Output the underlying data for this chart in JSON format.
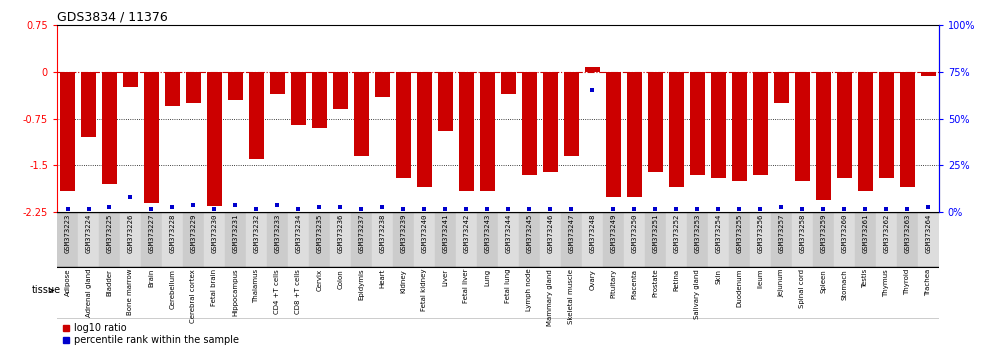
{
  "title": "GDS3834 / 11376",
  "samples": [
    "GSM373223",
    "GSM373224",
    "GSM373225",
    "GSM373226",
    "GSM373227",
    "GSM373228",
    "GSM373229",
    "GSM373230",
    "GSM373231",
    "GSM373232",
    "GSM373233",
    "GSM373234",
    "GSM373235",
    "GSM373236",
    "GSM373237",
    "GSM373238",
    "GSM373239",
    "GSM373240",
    "GSM373241",
    "GSM373242",
    "GSM373243",
    "GSM373244",
    "GSM373245",
    "GSM373246",
    "GSM373247",
    "GSM373248",
    "GSM373249",
    "GSM373250",
    "GSM373251",
    "GSM373252",
    "GSM373253",
    "GSM373254",
    "GSM373255",
    "GSM373256",
    "GSM373257",
    "GSM373258",
    "GSM373259",
    "GSM373260",
    "GSM373261",
    "GSM373262",
    "GSM373263",
    "GSM373264"
  ],
  "tissues": [
    "Adipose",
    "Adrenal gland",
    "Bladder",
    "Bone marrow",
    "Brain",
    "Cerebellum",
    "Cerebral cortex",
    "Fetal brain",
    "Hippocampus",
    "Thalamus",
    "CD4 +T cells",
    "CD8 +T cells",
    "Cervix",
    "Colon",
    "Epidymis",
    "Heart",
    "Kidney",
    "Fetal kidney",
    "Liver",
    "Fetal liver",
    "Lung",
    "Fetal lung",
    "Lymph node",
    "Mammary gland",
    "Skeletal muscle",
    "Ovary",
    "Pituitary",
    "Placenta",
    "Prostate",
    "Retina",
    "Salivary gland",
    "Skin",
    "Duodenum",
    "Ileum",
    "Jejunum",
    "Spinal cord",
    "Spleen",
    "Stomach",
    "Testis",
    "Thymus",
    "Thyroid",
    "Trachea"
  ],
  "log10_ratio": [
    -1.9,
    -1.05,
    -1.8,
    -0.25,
    -2.1,
    -0.55,
    -0.5,
    -2.15,
    -0.45,
    -1.4,
    -0.35,
    -0.85,
    -0.9,
    -0.6,
    -1.35,
    -0.4,
    -1.7,
    -1.85,
    -0.95,
    -1.9,
    -1.9,
    -0.35,
    -1.65,
    -1.6,
    -1.35,
    0.08,
    -2.0,
    -2.0,
    -1.6,
    -1.85,
    -1.65,
    -1.7,
    -1.75,
    -1.65,
    -0.5,
    -1.75,
    -2.05,
    -1.7,
    -1.9,
    -1.7,
    -1.85,
    -0.07
  ],
  "percentile_rank": [
    2,
    2,
    3,
    8,
    2,
    3,
    4,
    2,
    4,
    2,
    4,
    2,
    3,
    3,
    2,
    3,
    2,
    2,
    2,
    2,
    2,
    2,
    2,
    2,
    2,
    65,
    2,
    2,
    2,
    2,
    2,
    2,
    2,
    2,
    3,
    2,
    2,
    2,
    2,
    2,
    2,
    3
  ],
  "ylim": [
    -2.25,
    0.75
  ],
  "yticks_left": [
    0.75,
    0,
    -0.75,
    -1.5,
    -2.25
  ],
  "yticks_right_pct": [
    100,
    75,
    50,
    25,
    0
  ],
  "bar_color": "#cc0000",
  "percentile_color": "#0000cc",
  "tissue_bg_color": "#99ff99",
  "sample_bg_color_odd": "#cccccc",
  "sample_bg_color_even": "#dddddd",
  "hline0_color": "#cc0000",
  "hline_grid_color": "#000000",
  "legend_red_label": "log10 ratio",
  "legend_blue_label": "percentile rank within the sample"
}
